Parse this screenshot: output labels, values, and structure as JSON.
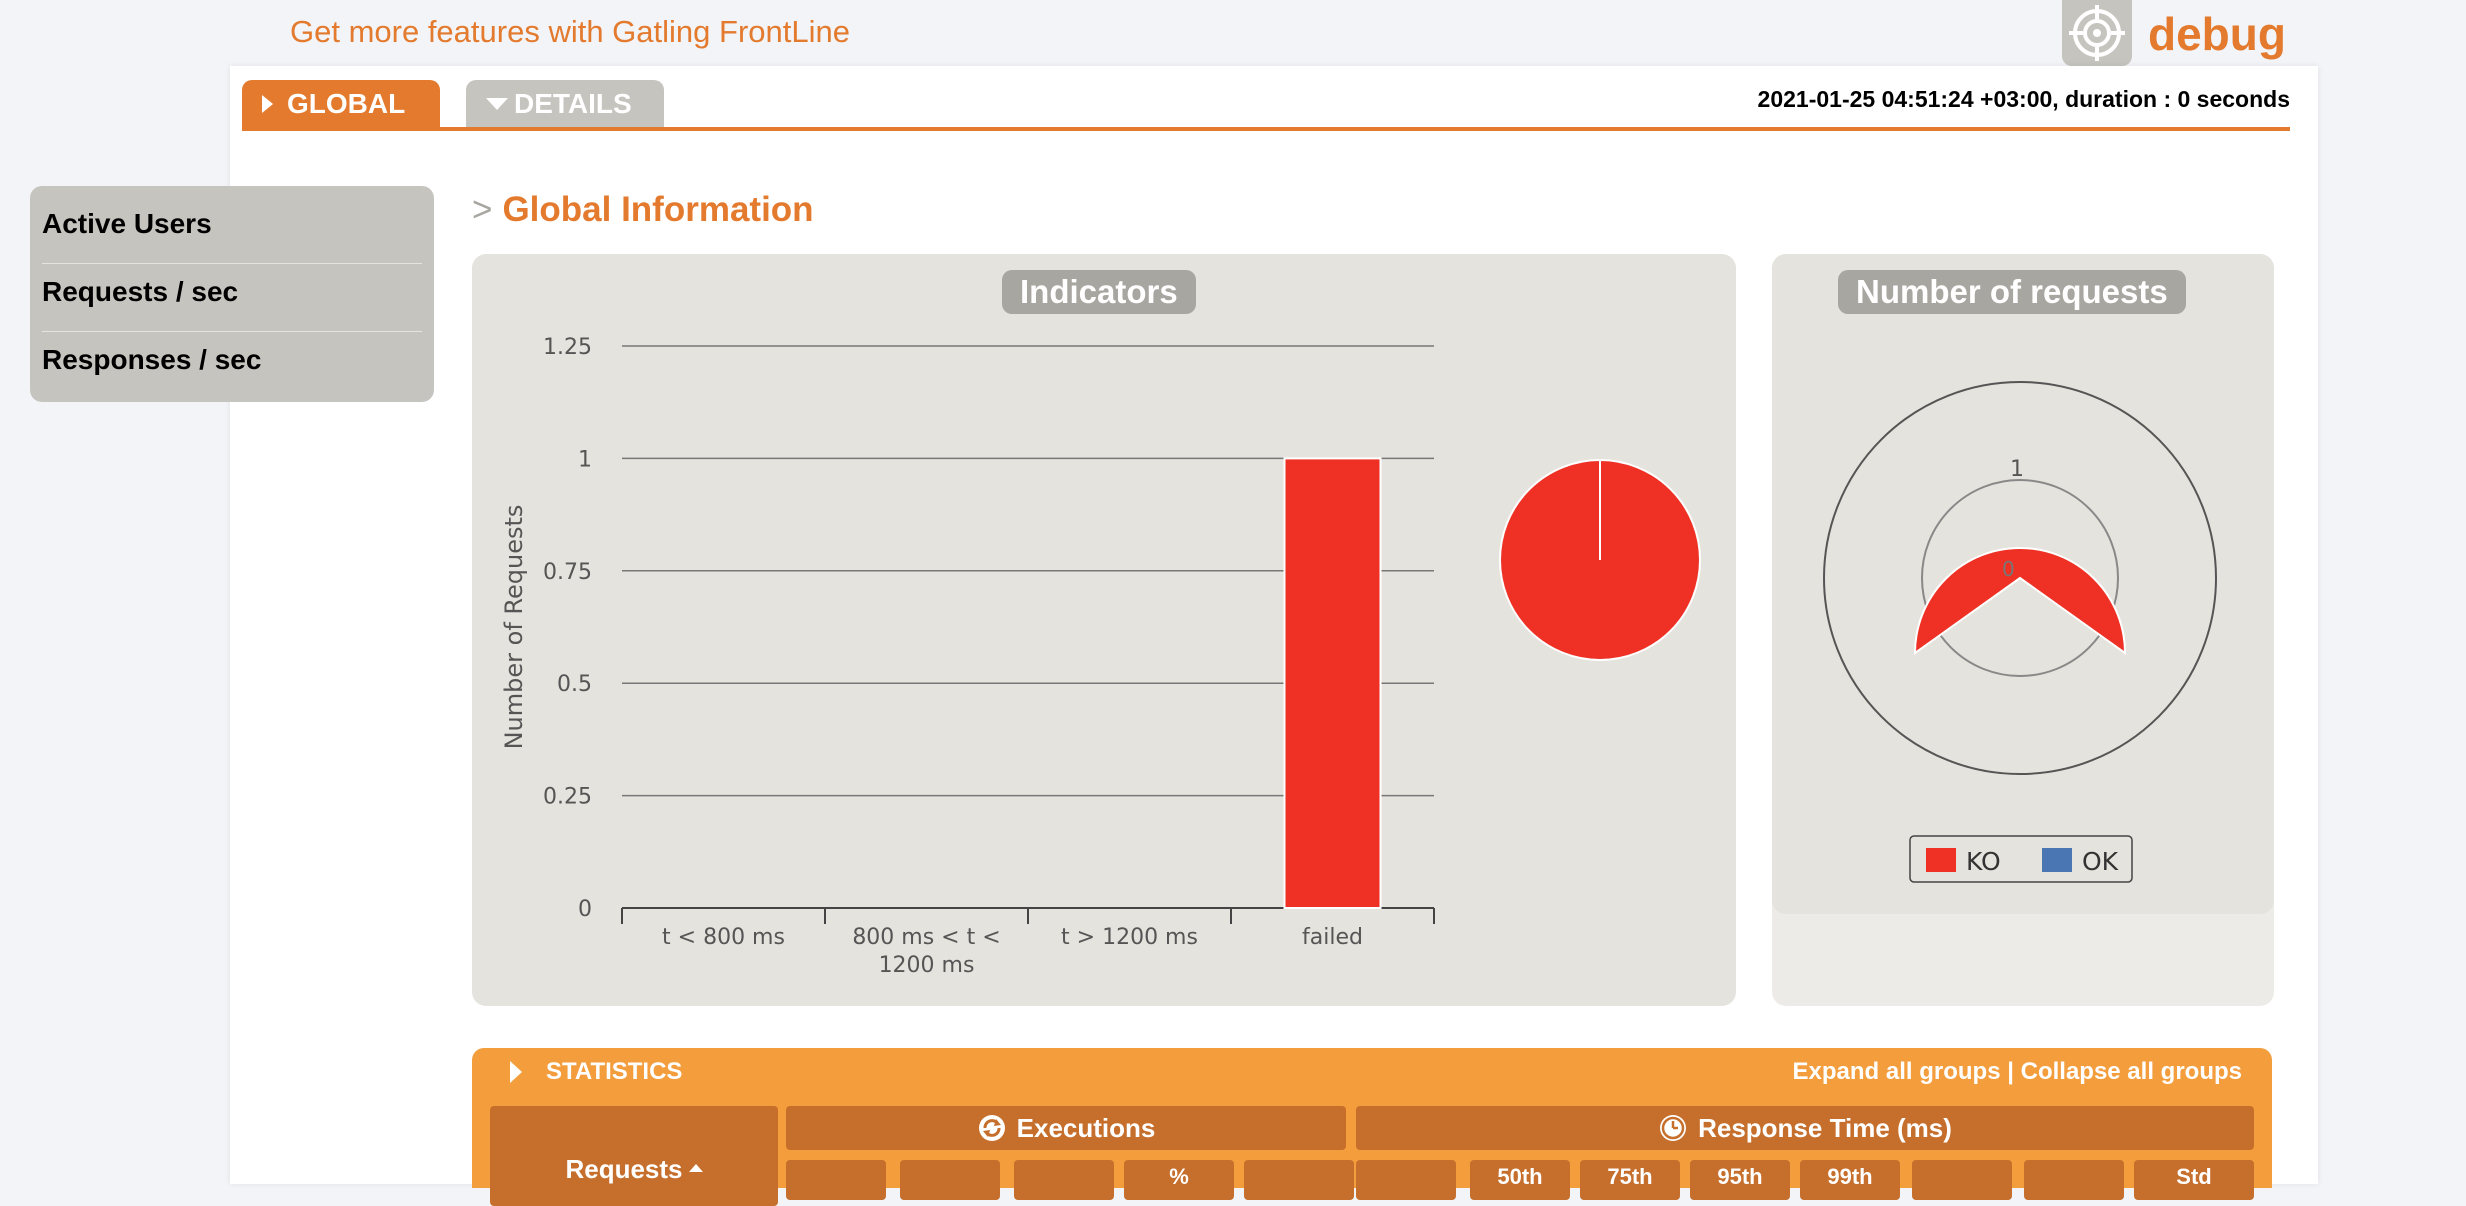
{
  "header": {
    "promo_link": "Get more features with Gatling FrontLine",
    "app_name": "debug",
    "logo_icon": "target-icon"
  },
  "tabs": [
    {
      "label": "GLOBAL",
      "active": true
    },
    {
      "label": "DETAILS",
      "active": false
    }
  ],
  "run_info": "2021-01-25 04:51:24 +03:00, duration : 0 seconds",
  "sidebar": {
    "items": [
      {
        "label": "Active Users"
      },
      {
        "label": "Requests / sec"
      },
      {
        "label": "Responses / sec"
      }
    ]
  },
  "section": {
    "arrow": ">",
    "title": "Global Information"
  },
  "indicators": {
    "title": "Indicators"
  },
  "requests_panel": {
    "title": "Number of requests",
    "outer_label": "1",
    "inner_label": "0",
    "legend": [
      {
        "label": "KO",
        "color": "#ee3124"
      },
      {
        "label": "OK",
        "color": "#4a76b3"
      }
    ]
  },
  "chart_data": [
    {
      "type": "bar",
      "title": "Indicators",
      "ylabel": "Number of Requests",
      "xlabel": "",
      "categories": [
        "t < 800 ms",
        "800 ms < t < 1200 ms",
        "t > 1200 ms",
        "failed"
      ],
      "values": [
        0,
        0,
        0,
        1
      ],
      "ylim": [
        0,
        1.25
      ],
      "yticks": [
        "0",
        "0.25",
        "0.5",
        "0.75",
        "1",
        "1.25"
      ],
      "bar_color": "#ee3124",
      "grid": true
    },
    {
      "type": "pie",
      "title": "",
      "slices": [
        {
          "label": "t < 800 ms",
          "value": 0
        },
        {
          "label": "800 ms < t < 1200 ms",
          "value": 0
        },
        {
          "label": "t > 1200 ms",
          "value": 0
        },
        {
          "label": "failed",
          "value": 1,
          "color": "#ee3124"
        }
      ]
    }
  ],
  "statistics": {
    "title": "STATISTICS",
    "expand_label": "Expand all groups",
    "separator": " | ",
    "collapse_label": "Collapse all groups",
    "requests_header": "Requests",
    "executions_header": "Executions",
    "response_time_header": "Response Time (ms)",
    "sub_headers": [
      "%",
      "50th",
      "75th",
      "95th",
      "99th",
      "Std"
    ]
  }
}
